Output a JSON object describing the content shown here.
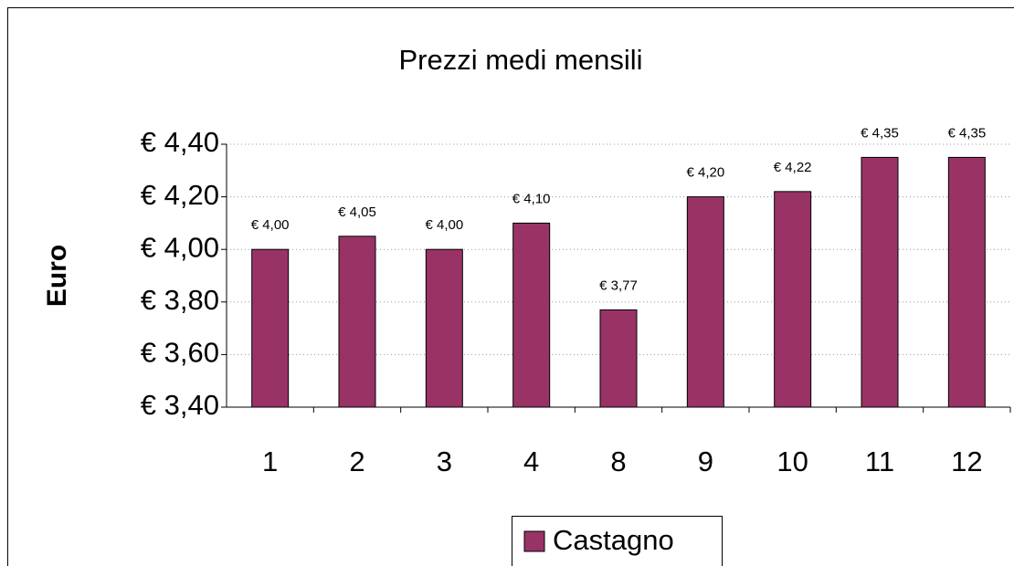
{
  "chart_data": {
    "type": "bar",
    "title": "Prezzi medi mensili",
    "y_label": "Euro",
    "categories": [
      "1",
      "2",
      "3",
      "4",
      "8",
      "9",
      "10",
      "11",
      "12"
    ],
    "series": [
      {
        "name": "Castagno",
        "color": "#993366",
        "values": [
          4.0,
          4.05,
          4.0,
          4.1,
          3.77,
          4.2,
          4.22,
          4.35,
          4.35
        ],
        "value_labels": [
          "€ 4,00",
          "€ 4,05",
          "€ 4,00",
          "€ 4,10",
          "€ 3,77",
          "€ 4,20",
          "€ 4,22",
          "€ 4,35",
          "€ 4,35"
        ]
      }
    ],
    "ylim": [
      3.4,
      4.4
    ],
    "yticks": [
      {
        "value": 3.4,
        "label": "€ 3,40"
      },
      {
        "value": 3.6,
        "label": "€ 3,60"
      },
      {
        "value": 3.8,
        "label": "€ 3,80"
      },
      {
        "value": 4.0,
        "label": "€ 4,00"
      },
      {
        "value": 4.2,
        "label": "€ 4,20"
      },
      {
        "value": 4.4,
        "label": "€ 4,40"
      }
    ],
    "grid": true,
    "legend": "bottom"
  }
}
